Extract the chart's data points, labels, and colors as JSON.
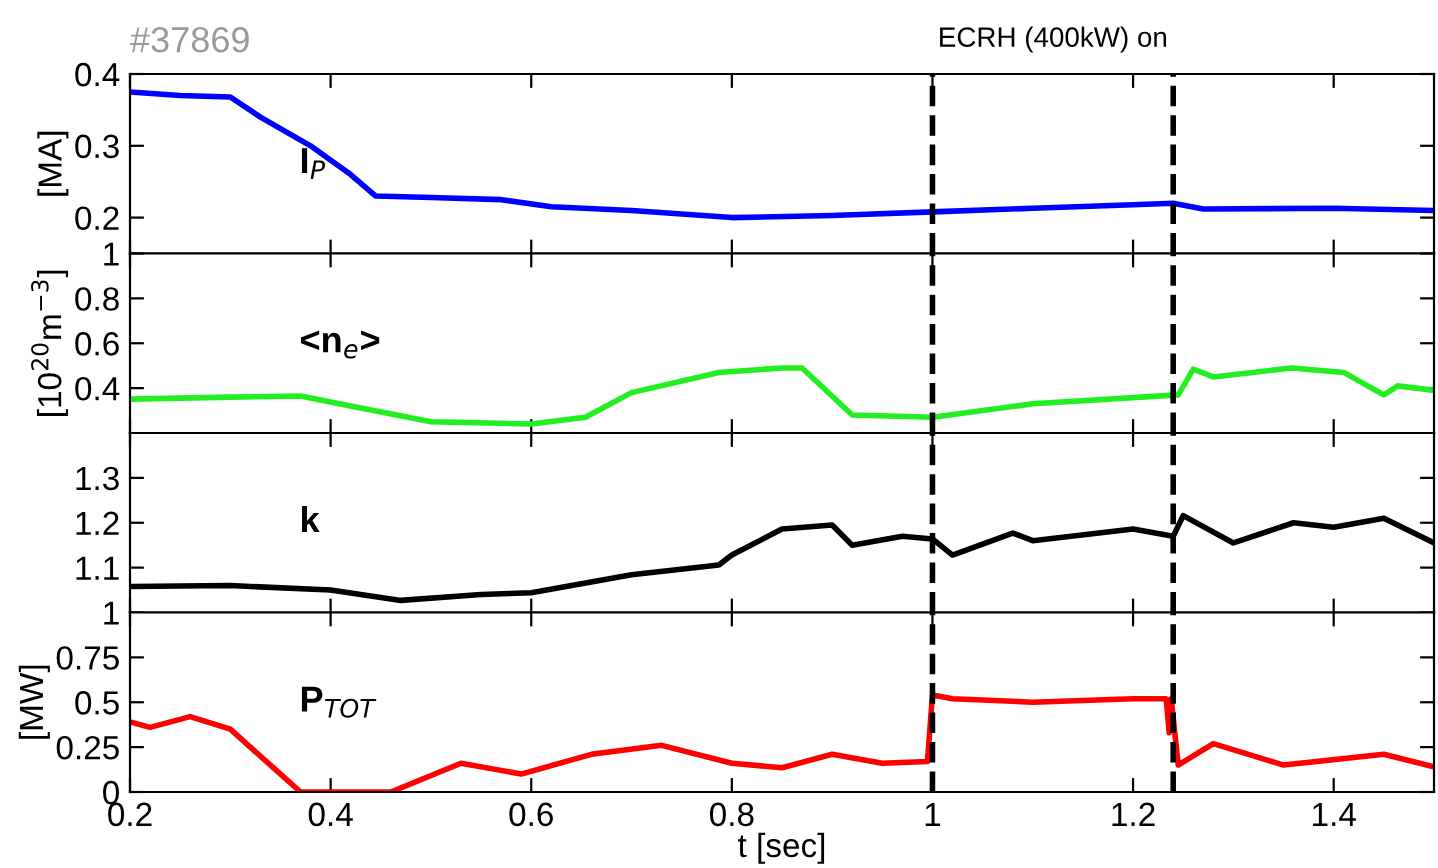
{
  "chart_data": [
    {
      "type": "line",
      "title": "#37869",
      "ylabel": "[MA]",
      "annotations": [
        "I$_{P}$",
        "ECRH (400kW) on"
      ],
      "xlim": [
        0.2,
        1.5
      ],
      "xticks": [
        0.2,
        0.4,
        0.6,
        0.8,
        1,
        1.2,
        1.4
      ],
      "ylim": [
        0.15,
        0.4
      ],
      "yticks": [
        0.2,
        0.3,
        0.4
      ],
      "tick_labels": "y",
      "grid": false,
      "legend": false,
      "line_style": "solid",
      "ref_lines": [
        {
          "axis": "x",
          "value": 1,
          "color": "#000000",
          "line_style": "dashed"
        },
        {
          "axis": "x",
          "value": 1.24,
          "color": "#000000",
          "line_style": "dashed"
        }
      ],
      "series": [
        {
          "color": "#0000ff",
          "x": [
            0.2,
            0.25,
            0.3,
            0.33,
            0.38,
            0.42,
            0.445,
            0.5,
            0.57,
            0.62,
            0.7,
            0.8,
            0.9,
            1.0,
            1.1,
            1.2,
            1.24,
            1.27,
            1.4,
            1.5
          ],
          "values": [
            0.375,
            0.37,
            0.368,
            0.34,
            0.3,
            0.26,
            0.23,
            0.228,
            0.225,
            0.215,
            0.21,
            0.2,
            0.203,
            0.208,
            0.213,
            0.218,
            0.22,
            0.212,
            0.213,
            0.21
          ]
        }
      ]
    },
    {
      "type": "line",
      "ylabel": "[10$^{20}$m$^{−3}$]",
      "annotations": [
        "<n$_{e}$>"
      ],
      "xlim": [
        0.2,
        1.5
      ],
      "xticks": [
        0.2,
        0.4,
        0.6,
        0.8,
        1,
        1.2,
        1.4
      ],
      "ylim": [
        0.2,
        1
      ],
      "yticks": [
        0.4,
        0.6,
        0.8,
        1
      ],
      "tick_labels": "y",
      "grid": false,
      "legend": false,
      "line_style": "solid",
      "ref_lines": [
        {
          "axis": "x",
          "value": 1,
          "color": "#000000",
          "line_style": "dashed"
        },
        {
          "axis": "x",
          "value": 1.24,
          "color": "#000000",
          "line_style": "dashed"
        }
      ],
      "series": [
        {
          "color": "#22ee22",
          "x": [
            0.2,
            0.3,
            0.37,
            0.42,
            0.5,
            0.6,
            0.654,
            0.7,
            0.787,
            0.85,
            0.87,
            0.92,
            1.0,
            1.1,
            1.245,
            1.26,
            1.28,
            1.358,
            1.41,
            1.45,
            1.464,
            1.5
          ],
          "values": [
            0.351,
            0.36,
            0.365,
            0.32,
            0.25,
            0.24,
            0.27,
            0.38,
            0.47,
            0.49,
            0.49,
            0.28,
            0.27,
            0.33,
            0.37,
            0.485,
            0.45,
            0.49,
            0.47,
            0.37,
            0.41,
            0.39
          ]
        }
      ]
    },
    {
      "type": "line",
      "annotations": [
        "k"
      ],
      "xlim": [
        0.2,
        1.5
      ],
      "xticks": [
        0.2,
        0.4,
        0.6,
        0.8,
        1,
        1.2,
        1.4
      ],
      "ylim": [
        1,
        1.4
      ],
      "yticks": [
        1,
        1.1,
        1.2,
        1.3
      ],
      "tick_labels": "y",
      "grid": false,
      "legend": false,
      "line_style": "solid",
      "ref_lines": [
        {
          "axis": "x",
          "value": 1,
          "color": "#000000",
          "line_style": "dashed"
        },
        {
          "axis": "x",
          "value": 1.24,
          "color": "#000000",
          "line_style": "dashed"
        }
      ],
      "series": [
        {
          "color": "#000000",
          "x": [
            0.2,
            0.3,
            0.4,
            0.47,
            0.55,
            0.6,
            0.7,
            0.787,
            0.8,
            0.85,
            0.9,
            0.92,
            0.97,
            1.0,
            1.02,
            1.08,
            1.1,
            1.2,
            1.24,
            1.25,
            1.3,
            1.36,
            1.4,
            1.45,
            1.5
          ],
          "values": [
            1.058,
            1.06,
            1.05,
            1.027,
            1.04,
            1.044,
            1.084,
            1.106,
            1.128,
            1.186,
            1.195,
            1.15,
            1.17,
            1.164,
            1.128,
            1.177,
            1.16,
            1.186,
            1.17,
            1.216,
            1.155,
            1.2,
            1.19,
            1.21,
            1.155
          ]
        }
      ]
    },
    {
      "type": "line",
      "ylabel": "[MW]",
      "xlabel": "t [sec]",
      "annotations": [
        "P$_{TOT}$"
      ],
      "xlim": [
        0.2,
        1.5
      ],
      "xticks": [
        0.2,
        0.4,
        0.6,
        0.8,
        1,
        1.2,
        1.4
      ],
      "ylim": [
        0,
        1
      ],
      "yticks": [
        0,
        0.25,
        0.5,
        0.75
      ],
      "grid": false,
      "legend": false,
      "line_style": "solid",
      "ref_lines": [
        {
          "axis": "x",
          "value": 1,
          "color": "#000000",
          "line_style": "dashed"
        },
        {
          "axis": "x",
          "value": 1.24,
          "color": "#000000",
          "line_style": "dashed"
        }
      ],
      "series": [
        {
          "color": "#ff0000",
          "x": [
            0.2,
            0.22,
            0.26,
            0.3,
            0.37,
            0.46,
            0.53,
            0.59,
            0.66,
            0.73,
            0.8,
            0.85,
            0.9,
            0.95,
            0.995,
            1.0,
            1.02,
            1.1,
            1.2,
            1.233,
            1.236,
            1.238,
            1.245,
            1.28,
            1.35,
            1.45,
            1.5
          ],
          "values": [
            0.39,
            0.36,
            0.42,
            0.35,
            0.0,
            0.0,
            0.16,
            0.1,
            0.21,
            0.26,
            0.16,
            0.135,
            0.21,
            0.16,
            0.17,
            0.54,
            0.52,
            0.5,
            0.52,
            0.52,
            0.33,
            0.52,
            0.15,
            0.27,
            0.15,
            0.21,
            0.14
          ]
        }
      ]
    }
  ]
}
